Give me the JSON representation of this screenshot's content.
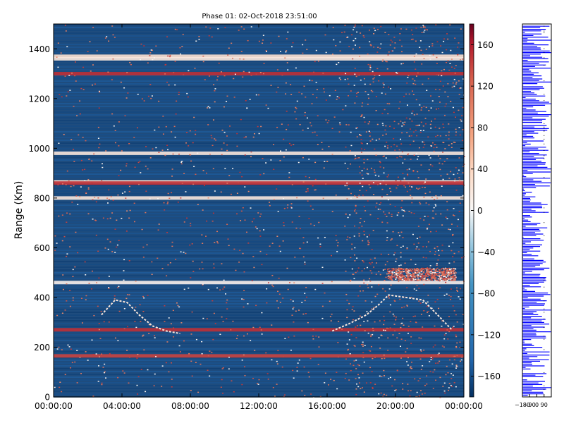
{
  "chart_data": [
    {
      "type": "heatmap",
      "title": "Phase 01: 02-Oct-2018 23:51:00",
      "ylabel": "Range (Km)",
      "xlabel": "",
      "xlim": [
        "00:00:00",
        "24:00:00"
      ],
      "ylim": [
        0,
        1500
      ],
      "x_ticks": [
        "00:00:00",
        "04:00:00",
        "08:00:00",
        "12:00:00",
        "16:00:00",
        "20:00:00",
        "00:00:00"
      ],
      "y_ticks": [
        0,
        200,
        400,
        600,
        800,
        1000,
        1200,
        1400
      ],
      "colorbar": {
        "colormap": "RdBu_r",
        "range": [
          -180,
          180
        ],
        "ticks": [
          -160,
          -120,
          -80,
          -40,
          0,
          40,
          80,
          120,
          160
        ]
      },
      "background_value": -160,
      "horizontal_bands": [
        {
          "range_km": 1370,
          "value": 30
        },
        {
          "range_km": 1360,
          "value": 20
        },
        {
          "range_km": 1300,
          "value": 150
        },
        {
          "range_km": 980,
          "value": 20
        },
        {
          "range_km": 865,
          "value": 30
        },
        {
          "range_km": 860,
          "value": 150
        },
        {
          "range_km": 800,
          "value": 20
        },
        {
          "range_km": 460,
          "value": 10
        },
        {
          "range_km": 270,
          "value": 150
        },
        {
          "range_km": 165,
          "value": 140
        }
      ],
      "traces": [
        {
          "name": "",
          "value": 20,
          "points": [
            [
              2.8,
              330
            ],
            [
              3.6,
              390
            ],
            [
              4.3,
              380
            ],
            [
              5.0,
              330
            ],
            [
              5.8,
              285
            ],
            [
              6.6,
              265
            ],
            [
              7.4,
              255
            ]
          ]
        },
        {
          "name": "",
          "value": 20,
          "points": [
            [
              16.3,
              265
            ],
            [
              17.3,
              295
            ],
            [
              18.3,
              330
            ],
            [
              19.0,
              370
            ],
            [
              19.6,
              410
            ],
            [
              20.6,
              400
            ],
            [
              21.6,
              390
            ],
            [
              22.6,
              320
            ],
            [
              23.3,
              270
            ]
          ]
        }
      ],
      "scatter_regions": [
        {
          "x_range": [
            0,
            24
          ],
          "y_range": [
            0,
            1500
          ],
          "density": "low",
          "value": 150
        },
        {
          "x_range": [
            17,
            24
          ],
          "y_range": [
            0,
            1500
          ],
          "density": "high",
          "value": 150
        },
        {
          "x_range": [
            19.5,
            23.5
          ],
          "y_range": [
            470,
            520
          ],
          "density": "high",
          "value": 150
        }
      ]
    },
    {
      "type": "line",
      "title": "",
      "xlabel": "",
      "ylabel": "",
      "xlim": [
        -180,
        180
      ],
      "x_ticks": [
        "−180",
        "−90",
        "0",
        "90"
      ],
      "ylim": [
        0,
        1500
      ],
      "series_color": "#0000ff",
      "description_values": "phase profile vs range, varying between about -180 and 180"
    }
  ]
}
